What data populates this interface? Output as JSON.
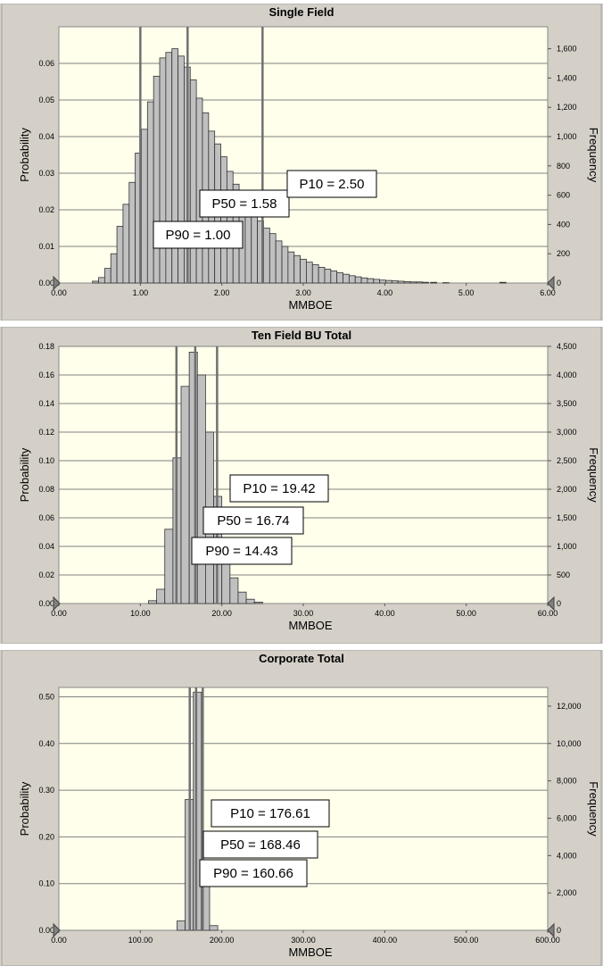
{
  "colors": {
    "panel_bg": "#d4d0c8",
    "plot_bg": "#ffffec",
    "bar_fill": "#c0c0c0",
    "bar_stroke": "#333333",
    "marker_line": "#707070",
    "grid": "#808080"
  },
  "chart_data": [
    {
      "type": "bar",
      "title": "Single Field",
      "xlabel": "MMBOE",
      "ylabel": "Probability",
      "y2label": "Frequency",
      "xlim": [
        0,
        6
      ],
      "ylim": [
        0,
        0.07
      ],
      "y2lim": [
        0,
        1750
      ],
      "xticks": [
        "0.00",
        "1.00",
        "2.00",
        "3.00",
        "4.00",
        "5.00",
        "6.00"
      ],
      "yticks": [
        "0.00",
        "0.01",
        "0.02",
        "0.03",
        "0.04",
        "0.05",
        "0.06"
      ],
      "y2ticks": [
        "0",
        "200",
        "400",
        "600",
        "800",
        "1,000",
        "1,200",
        "1,400",
        "1,600"
      ],
      "grid": true,
      "bins": [
        {
          "x": 0.45,
          "y": 0.0005
        },
        {
          "x": 0.525,
          "y": 0.0015
        },
        {
          "x": 0.6,
          "y": 0.004
        },
        {
          "x": 0.675,
          "y": 0.008
        },
        {
          "x": 0.75,
          "y": 0.0155
        },
        {
          "x": 0.825,
          "y": 0.0215
        },
        {
          "x": 0.9,
          "y": 0.0275
        },
        {
          "x": 0.975,
          "y": 0.0355
        },
        {
          "x": 1.05,
          "y": 0.042
        },
        {
          "x": 1.125,
          "y": 0.0495
        },
        {
          "x": 1.2,
          "y": 0.0565
        },
        {
          "x": 1.275,
          "y": 0.0615
        },
        {
          "x": 1.35,
          "y": 0.063
        },
        {
          "x": 1.425,
          "y": 0.064
        },
        {
          "x": 1.5,
          "y": 0.062
        },
        {
          "x": 1.575,
          "y": 0.059
        },
        {
          "x": 1.65,
          "y": 0.0555
        },
        {
          "x": 1.725,
          "y": 0.0505
        },
        {
          "x": 1.8,
          "y": 0.0465
        },
        {
          "x": 1.875,
          "y": 0.0415
        },
        {
          "x": 1.95,
          "y": 0.038
        },
        {
          "x": 2.025,
          "y": 0.0345
        },
        {
          "x": 2.1,
          "y": 0.0305
        },
        {
          "x": 2.175,
          "y": 0.027
        },
        {
          "x": 2.25,
          "y": 0.0245
        },
        {
          "x": 2.325,
          "y": 0.0215
        },
        {
          "x": 2.4,
          "y": 0.019
        },
        {
          "x": 2.475,
          "y": 0.017
        },
        {
          "x": 2.55,
          "y": 0.015
        },
        {
          "x": 2.625,
          "y": 0.0135
        },
        {
          "x": 2.7,
          "y": 0.0115
        },
        {
          "x": 2.775,
          "y": 0.01
        },
        {
          "x": 2.85,
          "y": 0.0085
        },
        {
          "x": 2.925,
          "y": 0.0075
        },
        {
          "x": 3.0,
          "y": 0.0065
        },
        {
          "x": 3.075,
          "y": 0.0057
        },
        {
          "x": 3.15,
          "y": 0.005
        },
        {
          "x": 3.225,
          "y": 0.0043
        },
        {
          "x": 3.3,
          "y": 0.0038
        },
        {
          "x": 3.375,
          "y": 0.0033
        },
        {
          "x": 3.45,
          "y": 0.0028
        },
        {
          "x": 3.525,
          "y": 0.0024
        },
        {
          "x": 3.6,
          "y": 0.002
        },
        {
          "x": 3.675,
          "y": 0.0017
        },
        {
          "x": 3.75,
          "y": 0.0014
        },
        {
          "x": 3.825,
          "y": 0.0012
        },
        {
          "x": 3.9,
          "y": 0.001
        },
        {
          "x": 3.975,
          "y": 0.0008
        },
        {
          "x": 4.05,
          "y": 0.0007
        },
        {
          "x": 4.125,
          "y": 0.0006
        },
        {
          "x": 4.2,
          "y": 0.0005
        },
        {
          "x": 4.275,
          "y": 0.0004
        },
        {
          "x": 4.35,
          "y": 0.0003
        },
        {
          "x": 4.425,
          "y": 0.0003
        },
        {
          "x": 4.5,
          "y": 0.0002
        },
        {
          "x": 4.6,
          "y": 0.0002
        },
        {
          "x": 4.75,
          "y": 0.0001
        },
        {
          "x": 5.45,
          "y": 0.0002
        }
      ],
      "bin_width": 0.075,
      "markers": [
        {
          "label": "P90 = 1.00",
          "x": 1.0
        },
        {
          "label": "P50 = 1.58",
          "x": 1.58
        },
        {
          "label": "P10 = 2.50",
          "x": 2.5
        }
      ]
    },
    {
      "type": "bar",
      "title": "Ten Field BU Total",
      "xlabel": "MMBOE",
      "ylabel": "Probability",
      "y2label": "Frequency",
      "xlim": [
        0,
        60
      ],
      "ylim": [
        0,
        0.18
      ],
      "y2lim": [
        0,
        4500
      ],
      "xticks": [
        "0.00",
        "10.00",
        "20.00",
        "30.00",
        "40.00",
        "50.00",
        "60.00"
      ],
      "yticks": [
        "0.00",
        "0.02",
        "0.04",
        "0.06",
        "0.08",
        "0.10",
        "0.12",
        "0.14",
        "0.16",
        "0.18"
      ],
      "y2ticks": [
        "0",
        "500",
        "1,000",
        "1,500",
        "2,000",
        "2,500",
        "3,000",
        "3,500",
        "4,000",
        "4,500"
      ],
      "grid": true,
      "bins": [
        {
          "x": 11.5,
          "y": 0.002
        },
        {
          "x": 12.5,
          "y": 0.01
        },
        {
          "x": 13.5,
          "y": 0.052
        },
        {
          "x": 14.5,
          "y": 0.102
        },
        {
          "x": 15.5,
          "y": 0.152
        },
        {
          "x": 16.5,
          "y": 0.176
        },
        {
          "x": 17.5,
          "y": 0.16
        },
        {
          "x": 18.5,
          "y": 0.12
        },
        {
          "x": 19.5,
          "y": 0.075
        },
        {
          "x": 20.5,
          "y": 0.04
        },
        {
          "x": 21.5,
          "y": 0.018
        },
        {
          "x": 22.5,
          "y": 0.008
        },
        {
          "x": 23.5,
          "y": 0.003
        },
        {
          "x": 24.5,
          "y": 0.001
        }
      ],
      "bin_width": 1.0,
      "markers": [
        {
          "label": "P90 = 14.43",
          "x": 14.43
        },
        {
          "label": "P50 = 16.74",
          "x": 16.74
        },
        {
          "label": "P10 = 19.42",
          "x": 19.42
        }
      ]
    },
    {
      "type": "bar",
      "title": "Corporate Total",
      "xlabel": "MMBOE",
      "ylabel": "Probability",
      "y2label": "Frequency",
      "xlim": [
        0,
        600
      ],
      "ylim": [
        0,
        0.52
      ],
      "y2lim": [
        0,
        13000
      ],
      "xticks": [
        "0.00",
        "100.00",
        "200.00",
        "300.00",
        "400.00",
        "500.00",
        "600.00"
      ],
      "yticks": [
        "0.00",
        "0.10",
        "0.20",
        "0.30",
        "0.40",
        "0.50"
      ],
      "y2ticks": [
        "0",
        "2,000",
        "4,000",
        "6,000",
        "8,000",
        "10,000",
        "12,000"
      ],
      "grid": true,
      "bins": [
        {
          "x": 150,
          "y": 0.02
        },
        {
          "x": 160,
          "y": 0.28
        },
        {
          "x": 170,
          "y": 0.51
        },
        {
          "x": 180,
          "y": 0.15
        },
        {
          "x": 190,
          "y": 0.01
        }
      ],
      "bin_width": 10,
      "markers": [
        {
          "label": "P90 = 160.66",
          "x": 160.66
        },
        {
          "label": "P50 = 168.46",
          "x": 168.46
        },
        {
          "label": "P10 = 176.61",
          "x": 176.61
        }
      ]
    }
  ]
}
